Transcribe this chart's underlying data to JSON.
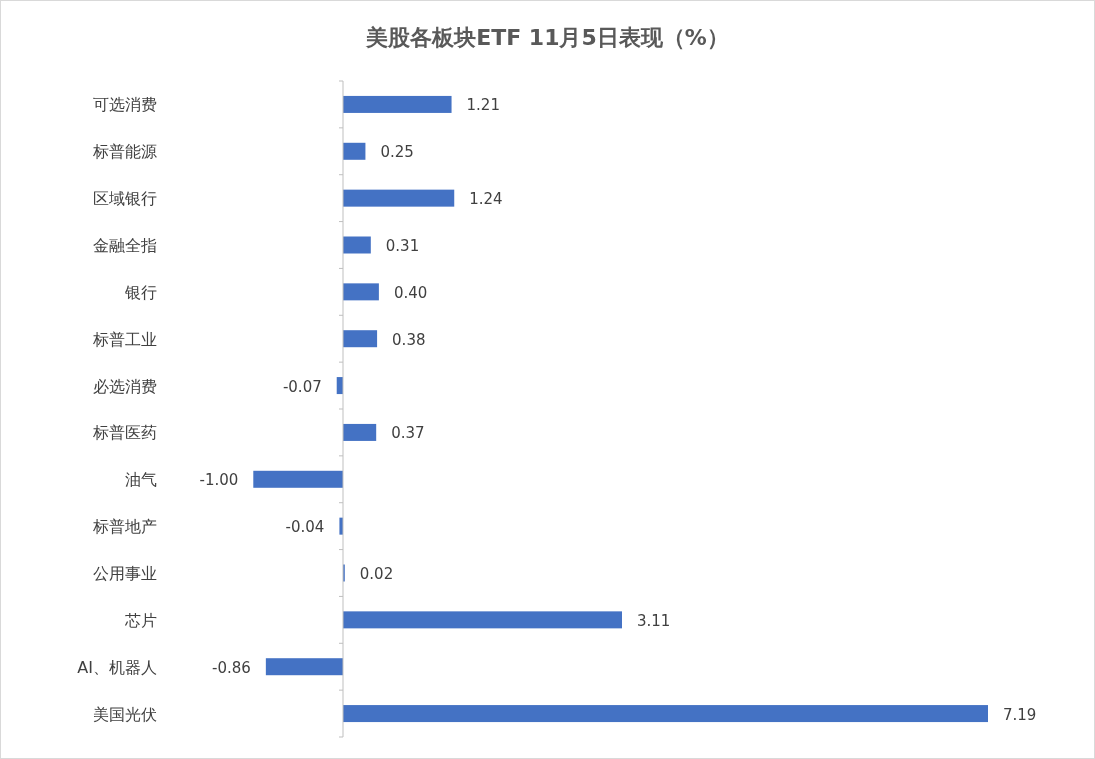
{
  "chart_data": {
    "type": "bar",
    "orientation": "horizontal",
    "title": "美股各板块ETF  11月5日表现（%）",
    "categories": [
      "可选消费",
      "标普能源",
      "区域银行",
      "金融全指",
      "银行",
      "标普工业",
      "必选消费",
      "标普医药",
      "油气",
      "标普地产",
      "公用事业",
      "芯片",
      "AI、机器人",
      "美国光伏"
    ],
    "values": [
      1.21,
      0.25,
      1.24,
      0.31,
      0.4,
      0.38,
      -0.07,
      0.37,
      -1.0,
      -0.04,
      0.02,
      3.11,
      -0.86,
      7.19
    ],
    "value_labels": [
      "1.21",
      "0.25",
      "1.24",
      "0.31",
      "0.40",
      "0.38",
      "-0.07",
      "0.37",
      "-1.00",
      "-0.04",
      "0.02",
      "3.11",
      "-0.86",
      "7.19"
    ],
    "color": "#4472c4",
    "tick_labels": "y"
  }
}
